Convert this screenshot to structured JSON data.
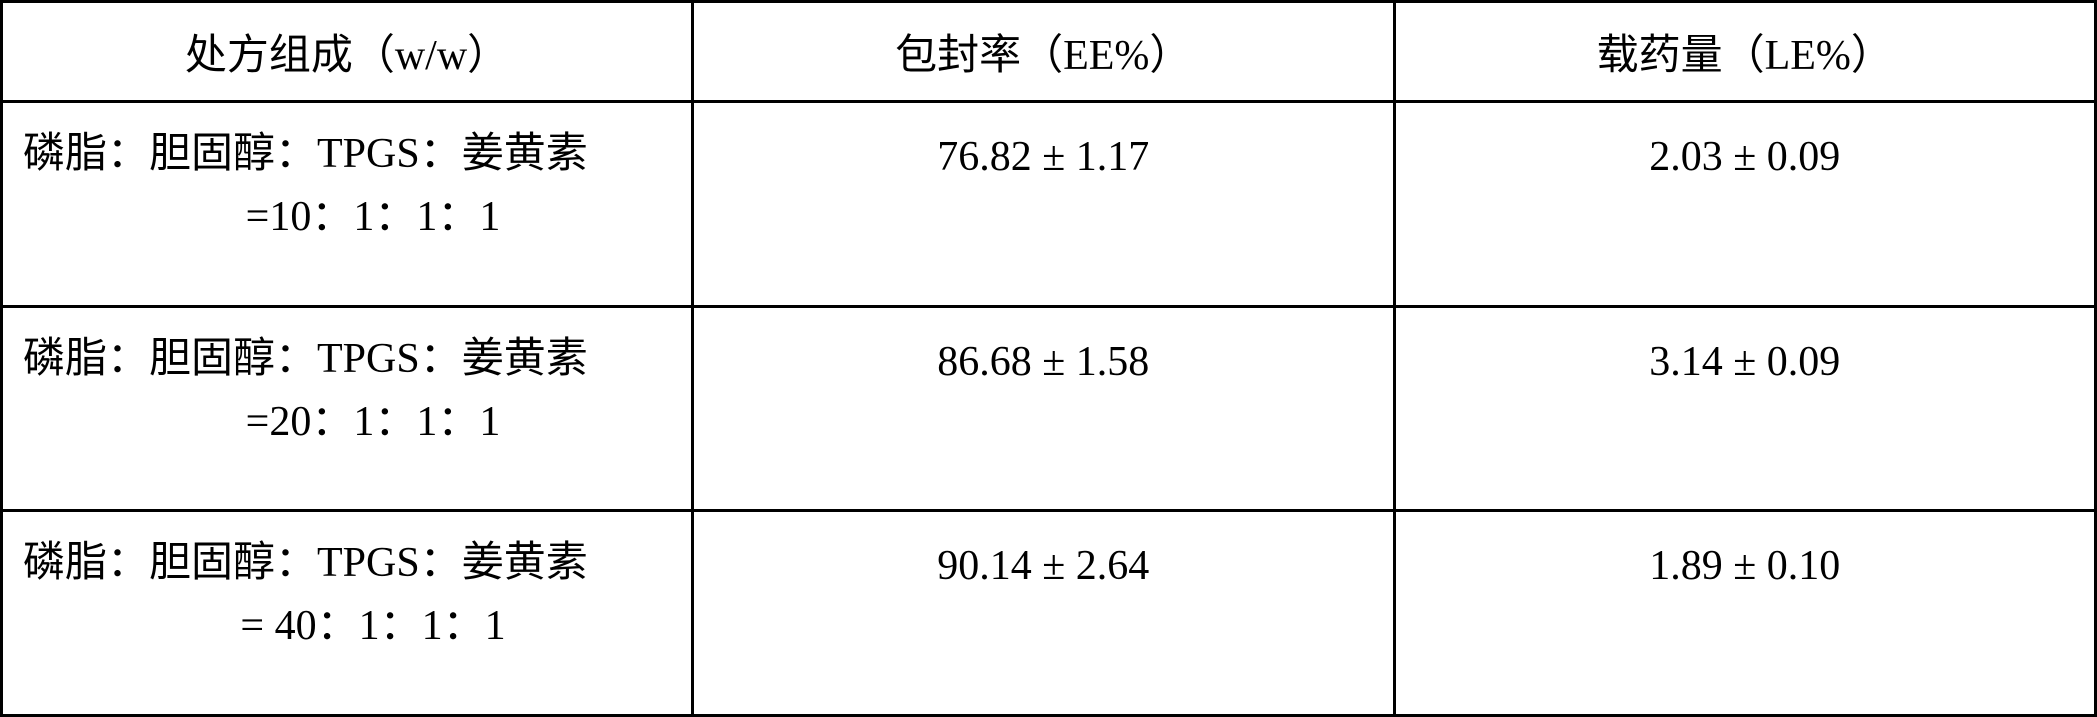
{
  "table": {
    "border_color": "#000000",
    "background_color": "#ffffff",
    "text_color": "#000000",
    "font_size": 42,
    "border_width": 3,
    "columns": [
      {
        "header": "处方组成（w/w）",
        "width_percent": 33
      },
      {
        "header": "包封率（EE%）",
        "width_percent": 33.5
      },
      {
        "header": "载药量（LE%）",
        "width_percent": 33.5
      }
    ],
    "rows": [
      {
        "formula_line1": "磷脂：胆固醇：TPGS：姜黄素",
        "formula_line2": "=10：1：1：1",
        "ee": "76.82 ± 1.17",
        "le": "2.03 ± 0.09"
      },
      {
        "formula_line1": "磷脂：胆固醇：TPGS：姜黄素",
        "formula_line2": "=20：1：1：1",
        "ee": "86.68 ± 1.58",
        "le": "3.14 ± 0.09"
      },
      {
        "formula_line1": "磷脂：胆固醇：TPGS：姜黄素",
        "formula_line2": "= 40：1：1：1",
        "ee": "90.14 ± 2.64",
        "le": "1.89 ± 0.10"
      }
    ]
  }
}
